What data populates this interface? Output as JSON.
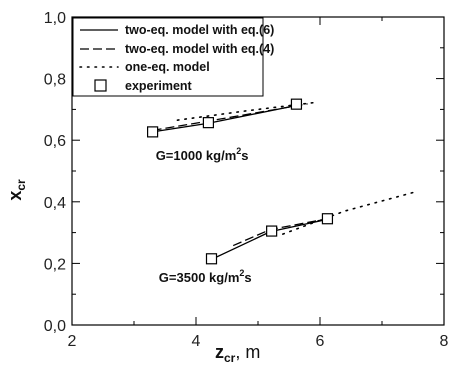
{
  "chart_data": {
    "type": "line",
    "xlabel": {
      "main": "z",
      "sub": "cr",
      "unit": ", m"
    },
    "ylabel": {
      "main": "x",
      "sub": "cr"
    },
    "xlim": [
      2,
      8
    ],
    "ylim": [
      0.0,
      1.0
    ],
    "x_ticks": [
      2,
      4,
      6,
      8
    ],
    "x_tick_labels": [
      "2",
      "4",
      "6",
      "8"
    ],
    "y_ticks": [
      0.0,
      0.2,
      0.4,
      0.6,
      0.8,
      1.0
    ],
    "y_tick_labels": [
      "0,0",
      "0,2",
      "0,4",
      "0,6",
      "0,8",
      "1,0"
    ],
    "legend_position": "top-left",
    "series": [
      {
        "name": "two-eq. model with eq.(6)",
        "style": "solid",
        "groups": [
          {
            "x": [
              3.3,
              4.2,
              5.6
            ],
            "y": [
              0.627,
              0.655,
              0.712
            ]
          },
          {
            "x": [
              4.25,
              5.2,
              6.1
            ],
            "y": [
              0.213,
              0.303,
              0.342
            ]
          }
        ]
      },
      {
        "name": "two-eq. model with eq.(4)",
        "style": "dashed",
        "groups": [
          {
            "x": [
              3.3,
              4.2,
              5.8
            ],
            "y": [
              0.632,
              0.662,
              0.718
            ]
          },
          {
            "x": [
              4.6,
              5.2,
              6.2
            ],
            "y": [
              0.258,
              0.31,
              0.348
            ]
          }
        ]
      },
      {
        "name": "one-eq. model",
        "style": "dotted",
        "groups": [
          {
            "x": [
              3.7,
              4.8,
              5.9
            ],
            "y": [
              0.665,
              0.695,
              0.722
            ]
          },
          {
            "x": [
              5.4,
              6.4,
              7.5
            ],
            "y": [
              0.295,
              0.37,
              0.43
            ]
          }
        ]
      },
      {
        "name": "experiment",
        "style": "markers",
        "marker": "open-square",
        "x": [
          3.3,
          4.2,
          5.62,
          4.25,
          5.22,
          6.12
        ],
        "y": [
          0.627,
          0.657,
          0.717,
          0.215,
          0.305,
          0.345
        ]
      }
    ],
    "annotations": [
      {
        "text": "G=1000 kg/m",
        "sup": "2",
        "tail": "s",
        "x": 3.35,
        "y": 0.535
      },
      {
        "text": "G=3500 kg/m",
        "sup": "2",
        "tail": "s",
        "x": 3.4,
        "y": 0.14
      }
    ]
  }
}
